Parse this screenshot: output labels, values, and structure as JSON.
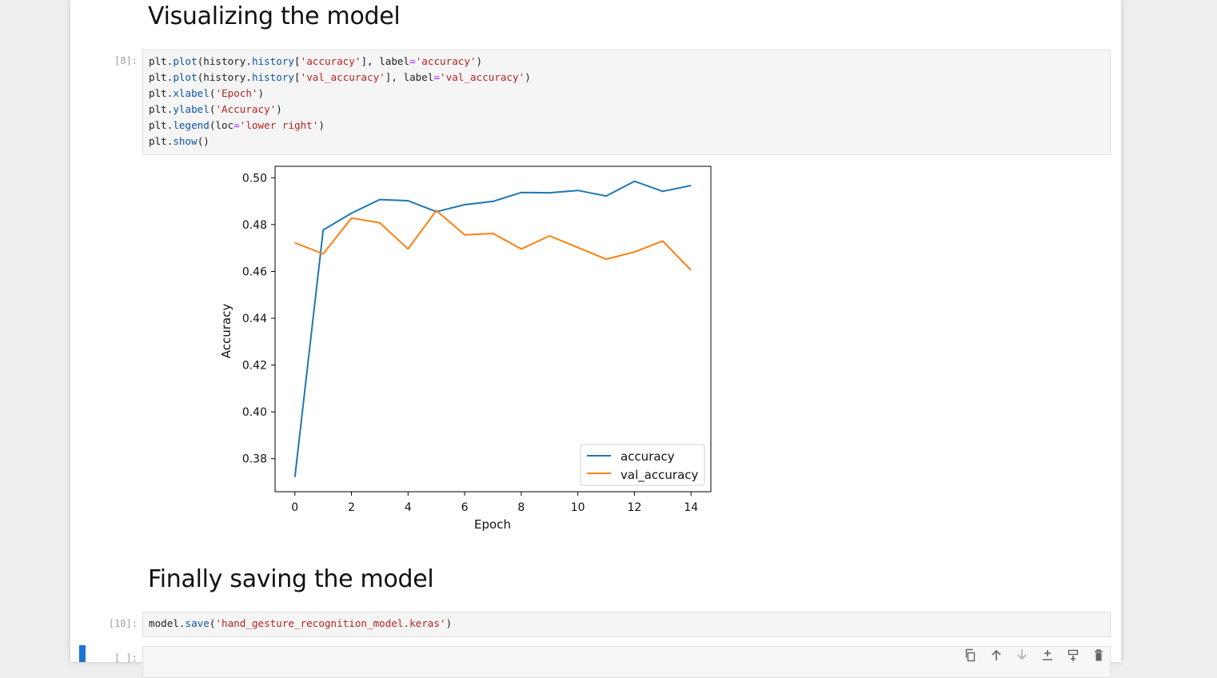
{
  "headings": {
    "visualize": "Visualizing the model",
    "save": "Finally saving the model"
  },
  "cells": {
    "plot_cell": {
      "prompt": "[8]:",
      "lines": [
        [
          {
            "t": "plt.",
            "c": "punc"
          },
          {
            "t": "plot",
            "c": "attr"
          },
          {
            "t": "(history.",
            "c": "punc"
          },
          {
            "t": "history",
            "c": "attr"
          },
          {
            "t": "[",
            "c": "punc"
          },
          {
            "t": "'accuracy'",
            "c": "str"
          },
          {
            "t": "], label",
            "c": "punc"
          },
          {
            "t": "=",
            "c": "op"
          },
          {
            "t": "'accuracy'",
            "c": "str"
          },
          {
            "t": ")",
            "c": "punc"
          }
        ],
        [
          {
            "t": "plt.",
            "c": "punc"
          },
          {
            "t": "plot",
            "c": "attr"
          },
          {
            "t": "(history.",
            "c": "punc"
          },
          {
            "t": "history",
            "c": "attr"
          },
          {
            "t": "[",
            "c": "punc"
          },
          {
            "t": "'val_accuracy'",
            "c": "str"
          },
          {
            "t": "], label",
            "c": "punc"
          },
          {
            "t": "=",
            "c": "op"
          },
          {
            "t": "'val_accuracy'",
            "c": "str"
          },
          {
            "t": ")",
            "c": "punc"
          }
        ],
        [
          {
            "t": "plt.",
            "c": "punc"
          },
          {
            "t": "xlabel",
            "c": "attr"
          },
          {
            "t": "(",
            "c": "punc"
          },
          {
            "t": "'Epoch'",
            "c": "str"
          },
          {
            "t": ")",
            "c": "punc"
          }
        ],
        [
          {
            "t": "plt.",
            "c": "punc"
          },
          {
            "t": "ylabel",
            "c": "attr"
          },
          {
            "t": "(",
            "c": "punc"
          },
          {
            "t": "'Accuracy'",
            "c": "str"
          },
          {
            "t": ")",
            "c": "punc"
          }
        ],
        [
          {
            "t": "plt.",
            "c": "punc"
          },
          {
            "t": "legend",
            "c": "attr"
          },
          {
            "t": "(loc",
            "c": "punc"
          },
          {
            "t": "=",
            "c": "op"
          },
          {
            "t": "'lower right'",
            "c": "str"
          },
          {
            "t": ")",
            "c": "punc"
          }
        ],
        [
          {
            "t": "plt.",
            "c": "punc"
          },
          {
            "t": "show",
            "c": "attr"
          },
          {
            "t": "()",
            "c": "punc"
          }
        ]
      ]
    },
    "save_cell": {
      "prompt": "[10]:",
      "lines": [
        [
          {
            "t": "model.",
            "c": "punc"
          },
          {
            "t": "save",
            "c": "attr"
          },
          {
            "t": "(",
            "c": "punc"
          },
          {
            "t": "'hand_gesture_recognition_model.keras'",
            "c": "str"
          },
          {
            "t": ")",
            "c": "punc"
          }
        ]
      ]
    },
    "empty_cell": {
      "prompt": "[ ]:"
    }
  },
  "toolbar": {
    "icons": [
      "duplicate-icon",
      "move-up-icon",
      "move-down-icon",
      "insert-above-icon",
      "insert-below-icon",
      "delete-icon"
    ]
  },
  "colors": {
    "accuracy": "#1f77b4",
    "val_accuracy": "#ff7f0e",
    "active_cell": "#1976d2"
  },
  "chart_data": {
    "type": "line",
    "xlabel": "Epoch",
    "ylabel": "Accuracy",
    "x": [
      0,
      1,
      2,
      3,
      4,
      5,
      6,
      7,
      8,
      9,
      10,
      11,
      12,
      13,
      14
    ],
    "series": [
      {
        "name": "accuracy",
        "values": [
          0.3722,
          0.4777,
          0.4849,
          0.4907,
          0.4902,
          0.4855,
          0.4885,
          0.4899,
          0.4937,
          0.4936,
          0.4946,
          0.4922,
          0.4985,
          0.4942,
          0.4967
        ]
      },
      {
        "name": "val_accuracy",
        "values": [
          0.4722,
          0.4675,
          0.4828,
          0.4808,
          0.4696,
          0.486,
          0.4756,
          0.4762,
          0.4696,
          0.4752,
          0.4702,
          0.4652,
          0.4683,
          0.473,
          0.4605
        ]
      }
    ],
    "xticks": [
      0,
      2,
      4,
      6,
      8,
      10,
      12,
      14
    ],
    "yticks": [
      0.38,
      0.4,
      0.42,
      0.44,
      0.46,
      0.48,
      0.5
    ],
    "xlim": [
      -0.7,
      14.7
    ],
    "ylim": [
      0.3659,
      0.5049
    ],
    "legend": "lower right",
    "grid": false
  }
}
